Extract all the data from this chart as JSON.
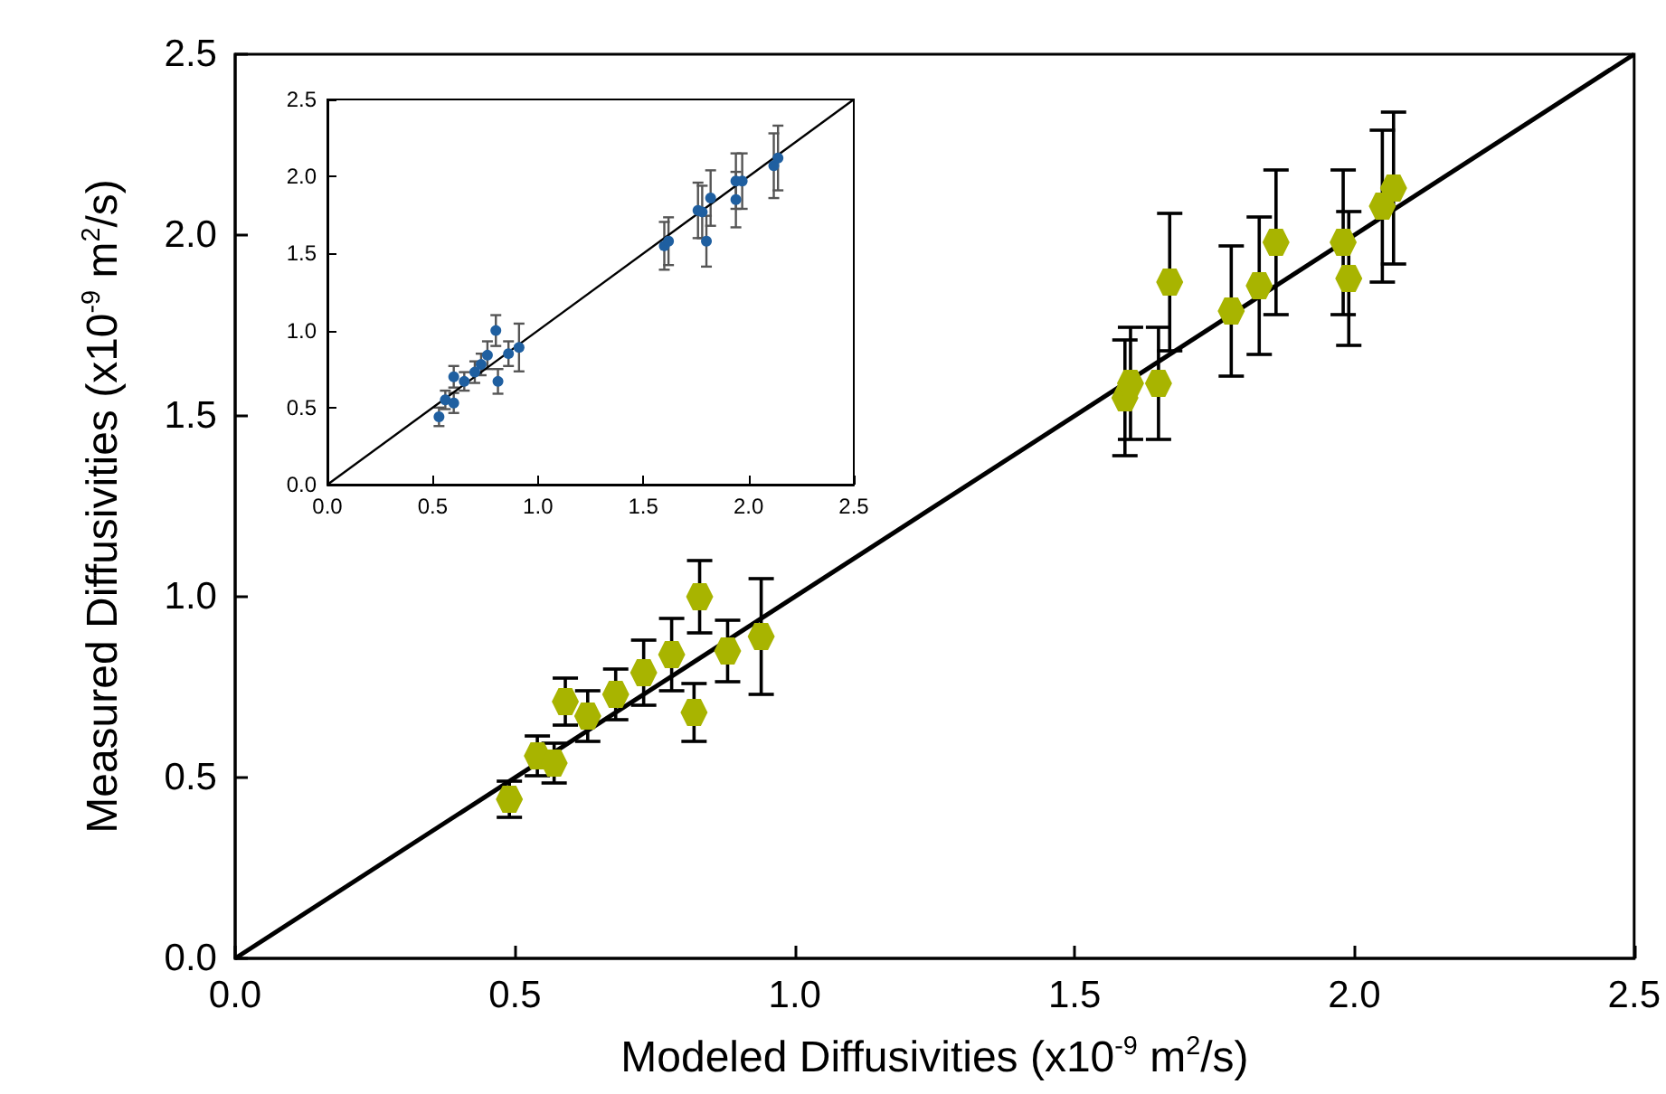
{
  "chart_data": [
    {
      "type": "scatter",
      "xlabel": "Modeled Diffusivities (x10$^{-9}$ m$^{2}$/s)",
      "ylabel": "Measured Diffusivities (x10$^{-9}$ m$^{2}$/s)",
      "xlim": [
        0,
        2.5
      ],
      "ylim": [
        0,
        2.5
      ],
      "xticks": [
        {
          "value": 0,
          "label": "0.0"
        },
        {
          "value": 0.5,
          "label": "0.5"
        },
        {
          "value": 1,
          "label": "1.0"
        },
        {
          "value": 1.5,
          "label": "1.5"
        },
        {
          "value": 2,
          "label": "2.0"
        },
        {
          "value": 2.5,
          "label": "2.5"
        }
      ],
      "yticks": [
        {
          "value": 0,
          "label": "0.0"
        },
        {
          "value": 0.5,
          "label": "0.5"
        },
        {
          "value": 1,
          "label": "1.0"
        },
        {
          "value": 1.5,
          "label": "1.5"
        },
        {
          "value": 2,
          "label": "2.0"
        },
        {
          "value": 2.5,
          "label": "2.5"
        }
      ],
      "series": [
        {
          "type": "scatter",
          "color": "#a8b400",
          "x": [
            0.49,
            0.54,
            0.57,
            0.59,
            0.63,
            0.68,
            0.73,
            0.78,
            0.83,
            0.82,
            0.88,
            0.94,
            1.59,
            1.6,
            1.65,
            1.67,
            1.78,
            1.83,
            1.86,
            1.98,
            1.99,
            2.05,
            2.07
          ],
          "values": [
            0.44,
            0.56,
            0.54,
            0.71,
            0.67,
            0.73,
            0.79,
            0.84,
            1.0,
            0.68,
            0.85,
            0.89,
            1.55,
            1.59,
            1.59,
            1.87,
            1.79,
            1.86,
            1.98,
            1.98,
            1.88,
            2.08,
            2.13
          ],
          "errors": [
            0.05,
            0.055,
            0.055,
            0.065,
            0.07,
            0.07,
            0.09,
            0.1,
            0.1,
            0.08,
            0.085,
            0.16,
            0.16,
            0.155,
            0.155,
            0.19,
            0.18,
            0.19,
            0.2,
            0.2,
            0.185,
            0.21,
            0.21
          ]
        },
        {
          "type": "line",
          "color": "#000000",
          "x": [
            0,
            2.5
          ],
          "values": [
            0,
            2.5
          ]
        }
      ]
    },
    {
      "type": "scatter",
      "xlim": [
        0,
        2.5
      ],
      "ylim": [
        0,
        2.5
      ],
      "xticks": [
        {
          "value": 0,
          "label": "0.0"
        },
        {
          "value": 0.5,
          "label": "0.5"
        },
        {
          "value": 1,
          "label": "1.0"
        },
        {
          "value": 1.5,
          "label": "1.5"
        },
        {
          "value": 2,
          "label": "2.0"
        },
        {
          "value": 2.5,
          "label": "2.5"
        }
      ],
      "yticks": [
        {
          "value": 0,
          "label": "0.0"
        },
        {
          "value": 0.5,
          "label": "0.5"
        },
        {
          "value": 1,
          "label": "1.0"
        },
        {
          "value": 1.5,
          "label": "1.5"
        },
        {
          "value": 2,
          "label": "2.0"
        },
        {
          "value": 2.5,
          "label": "2.5"
        }
      ],
      "series": [
        {
          "type": "scatter",
          "marker": "circle",
          "color": "#1f5fa0",
          "x": [
            0.53,
            0.56,
            0.6,
            0.6,
            0.65,
            0.7,
            0.73,
            0.76,
            0.8,
            0.81,
            0.86,
            0.91,
            1.6,
            1.62,
            1.76,
            1.78,
            1.82,
            1.8,
            1.94,
            1.94,
            1.97,
            2.12,
            2.14
          ],
          "values": [
            0.44,
            0.55,
            0.53,
            0.7,
            0.67,
            0.73,
            0.78,
            0.84,
            1.0,
            0.67,
            0.85,
            0.89,
            1.55,
            1.58,
            1.78,
            1.77,
            1.86,
            1.58,
            1.97,
            1.85,
            1.97,
            2.07,
            2.12
          ],
          "errors": [
            0.06,
            0.06,
            0.065,
            0.07,
            0.06,
            0.07,
            0.07,
            0.09,
            0.1,
            0.08,
            0.08,
            0.155,
            0.155,
            0.155,
            0.18,
            0.17,
            0.18,
            0.165,
            0.18,
            0.18,
            0.18,
            0.21,
            0.21
          ]
        },
        {
          "type": "line",
          "color": "#000000",
          "x": [
            0,
            2.5
          ],
          "values": [
            0,
            2.5
          ]
        }
      ]
    }
  ]
}
